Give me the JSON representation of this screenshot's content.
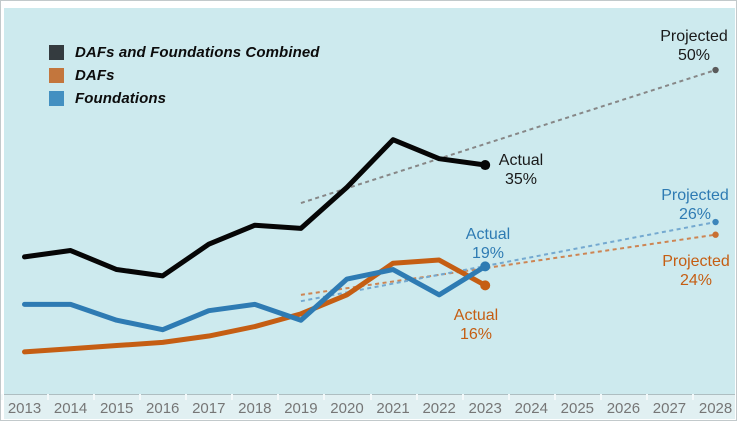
{
  "legend": {
    "items": [
      {
        "key": "combined",
        "label": "DAFs and Foundations Combined"
      },
      {
        "key": "dafs",
        "label": "DAFs"
      },
      {
        "key": "foundations",
        "label": "Foundations"
      }
    ]
  },
  "annotations": {
    "combined_actual": {
      "line1": "Actual",
      "line2": "35%"
    },
    "combined_projected": {
      "line1": "Projected",
      "line2": "50%"
    },
    "foundations_actual": {
      "line1": "Actual",
      "line2": "19%"
    },
    "foundations_projected": {
      "line1": "Projected",
      "line2": "26%"
    },
    "dafs_actual": {
      "line1": "Actual",
      "line2": "16%"
    },
    "dafs_projected": {
      "line1": "Projected",
      "line2": "24%"
    }
  },
  "chart_data": {
    "type": "line",
    "years_actual": [
      2013,
      2014,
      2015,
      2016,
      2017,
      2018,
      2019,
      2020,
      2021,
      2022,
      2023
    ],
    "trend_start_year": 2019,
    "projection_year": 2028,
    "series": [
      {
        "key": "combined",
        "name": "DAFs and Foundations Combined",
        "values_pct": [
          20.5,
          21.5,
          18.5,
          17.5,
          22.5,
          25.5,
          25,
          31.5,
          39,
          36,
          35
        ],
        "actual_2023_pct": 35,
        "trend_2019_pct": 29,
        "projected_2028_pct": 50
      },
      {
        "key": "dafs",
        "name": "DAFs",
        "values_pct": [
          5.5,
          6,
          6.5,
          7,
          8,
          9.5,
          11.5,
          14.5,
          19.5,
          20,
          16
        ],
        "actual_2023_pct": 16,
        "trend_2019_pct": 14.5,
        "projected_2028_pct": 24
      },
      {
        "key": "foundations",
        "name": "Foundations",
        "values_pct": [
          13,
          13,
          10.5,
          9,
          12,
          13,
          10.5,
          17,
          18.5,
          14.5,
          19
        ],
        "actual_2023_pct": 19,
        "trend_2019_pct": 13.5,
        "projected_2028_pct": 26
      }
    ],
    "x_axis": {
      "labels": [
        "2013",
        "2014",
        "2015",
        "2016",
        "2017",
        "2018",
        "2019",
        "2020",
        "2021",
        "2022",
        "2023",
        "2024",
        "2025",
        "2026",
        "2027",
        "2028"
      ]
    },
    "grid": "off",
    "legend_position": "top-left"
  },
  "colors": {
    "plot_background": "#cdeaee",
    "axis_background": "#e1f0f2",
    "combined_line": "#060606",
    "combined_swatch": "#343b3f",
    "dafs_line": "#c55e13",
    "dafs_swatch": "#c3763d",
    "foundations_line": "#2e7bb3",
    "foundations_swatch": "#4390c1",
    "trend_combined": "#878787",
    "trend_combined_dot": "#5a5a5a",
    "trend_dafs": "#cd8553",
    "trend_dafs_dot": "#c96f31",
    "trend_foundations": "#74a9d0",
    "trend_foundations_dot": "#3d86bb",
    "label_dark": "#1a1a1a",
    "axis_label": "#767676"
  }
}
